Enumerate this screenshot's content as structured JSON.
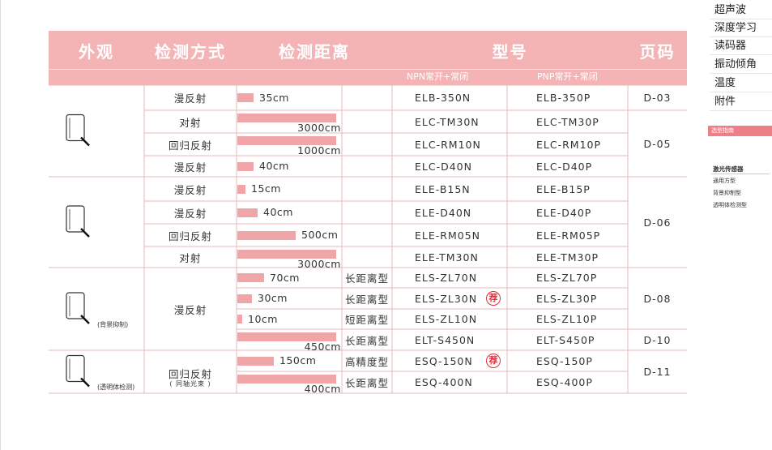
{
  "sidebar": {
    "menu": [
      "超声波",
      "深度学习",
      "读码器",
      "振动倾角",
      "温度",
      "附件"
    ],
    "active": "选型指南",
    "section": "激光传感器",
    "subsections": [
      "通用方型",
      "背景抑制型",
      "透明体检测型"
    ]
  },
  "table": {
    "headers": [
      "外观",
      "检测方式",
      "检测距离",
      "型号",
      "页码"
    ],
    "subheaders": [
      "NPN常开+常闭",
      "PNP常开+常闭"
    ],
    "appearance_notes": [
      "(背景抑制)",
      "(透明体检测)"
    ],
    "methods": [
      "漫反射",
      "对射",
      "回归反射",
      "漫反射",
      "漫反射",
      "漫反射",
      "回归反射",
      "对射",
      "漫反射",
      "回归反射"
    ],
    "method_note": "( 同轴光束 )",
    "pages": [
      "D-03",
      "D-05",
      "D-06",
      "D-08",
      "D-10",
      "D-11"
    ],
    "recommend_label": "荐",
    "rows": [
      {
        "distance": "35cm",
        "npn": "ELB-350N",
        "pnp": "ELB-350P"
      },
      {
        "distance": "3000cm",
        "npn": "ELC-TM30N",
        "pnp": "ELC-TM30P"
      },
      {
        "distance": "1000cm",
        "npn": "ELC-RM10N",
        "pnp": "ELC-RM10P"
      },
      {
        "distance": "40cm",
        "npn": "ELC-D40N",
        "pnp": "ELC-D40P"
      },
      {
        "distance": "15cm",
        "npn": "ELE-B15N",
        "pnp": "ELE-B15P"
      },
      {
        "distance": "40cm",
        "npn": "ELE-D40N",
        "pnp": "ELE-D40P"
      },
      {
        "distance": "500cm",
        "npn": "ELE-RM05N",
        "pnp": "ELE-RM05P"
      },
      {
        "distance": "3000cm",
        "npn": "ELE-TM30N",
        "pnp": "ELE-TM30P"
      },
      {
        "distance": "70cm",
        "type": "长距离型",
        "npn": "ELS-ZL70N",
        "pnp": "ELS-ZL70P"
      },
      {
        "distance": "30cm",
        "type": "长距离型",
        "npn": "ELS-ZL30N",
        "pnp": "ELS-ZL30P",
        "recommended": true
      },
      {
        "distance": "10cm",
        "type": "短距离型",
        "npn": "ELS-ZL10N",
        "pnp": "ELS-ZL10P"
      },
      {
        "distance": "450cm",
        "type": "长距离型",
        "npn": "ELT-S450N",
        "pnp": "ELT-S450P"
      },
      {
        "distance": "150cm",
        "type": "高精度型",
        "npn": "ESQ-150N",
        "pnp": "ESQ-150P",
        "recommended": true
      },
      {
        "distance": "400cm",
        "type": "长距离型",
        "npn": "ESQ-400N",
        "pnp": "ESQ-400P"
      }
    ]
  }
}
